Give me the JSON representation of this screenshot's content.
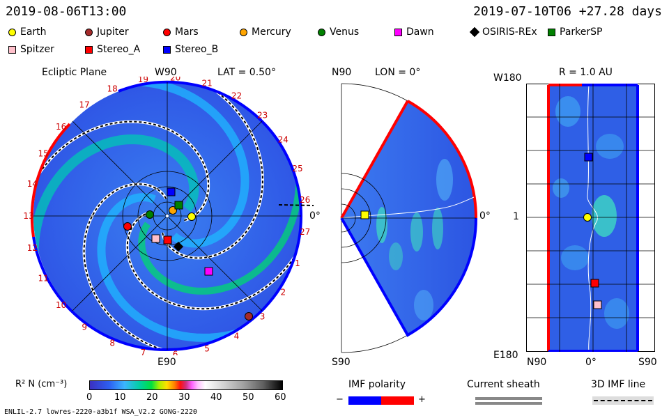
{
  "header": {
    "date_left": "2019-08-06T13:00",
    "date_right": "2019-07-10T06 +27.28 days"
  },
  "legend": [
    {
      "label": "Earth",
      "color": "#ffff00",
      "shape": "circle"
    },
    {
      "label": "Jupiter",
      "color": "#a52a2a",
      "shape": "circle"
    },
    {
      "label": "Mars",
      "color": "#ff0000",
      "shape": "circle"
    },
    {
      "label": "Mercury",
      "color": "#ffa500",
      "shape": "circle"
    },
    {
      "label": "Venus",
      "color": "#008000",
      "shape": "circle"
    },
    {
      "label": "Dawn",
      "color": "#ff00ff",
      "shape": "square"
    },
    {
      "label": "OSIRIS-REx",
      "color": "#000000",
      "shape": "diamond"
    },
    {
      "label": "ParkerSP",
      "color": "#008000",
      "shape": "square"
    },
    {
      "label": "Spitzer",
      "color": "#ffc0cb",
      "shape": "square"
    },
    {
      "label": "Stereo_A",
      "color": "#ff0000",
      "shape": "square"
    },
    {
      "label": "Stereo_B",
      "color": "#0000ff",
      "shape": "square"
    }
  ],
  "ecliptic": {
    "title": "Ecliptic Plane",
    "top": "W90",
    "lat": "LAT = 0.50°",
    "bottom": "E90",
    "right": "0°",
    "ticks": [
      "13",
      "14",
      "15",
      "16",
      "17",
      "18",
      "19",
      "20",
      "21",
      "22",
      "23",
      "24",
      "25",
      "26",
      "27",
      "1",
      "2",
      "3",
      "4",
      "5",
      "6",
      "7",
      "8",
      "9",
      "10",
      "11",
      "12"
    ]
  },
  "meridional": {
    "top": "N90",
    "lon": "LON = 0°",
    "bottom": "S90",
    "right": "0°"
  },
  "radial": {
    "title": "R = 1.0 AU",
    "top_left": "W180",
    "mid_left": "1",
    "bottom_left": "E180",
    "x_left": "N90",
    "x_mid": "0°",
    "x_right": "S90"
  },
  "colorbar": {
    "label": "R² N (cm⁻³)",
    "ticks": [
      "0",
      "10",
      "20",
      "30",
      "40",
      "50",
      "60"
    ]
  },
  "imf": {
    "label": "IMF polarity",
    "minus": "−",
    "plus": "+",
    "neg_color": "#0000ff",
    "pos_color": "#ff0000"
  },
  "sheath": {
    "label": "Current sheath"
  },
  "imfline": {
    "label": "3D IMF line"
  },
  "footer": {
    "text": "ENLIL-2.7 lowres-2220-a3b1f WSA_V2.2 GONG-2220"
  }
}
